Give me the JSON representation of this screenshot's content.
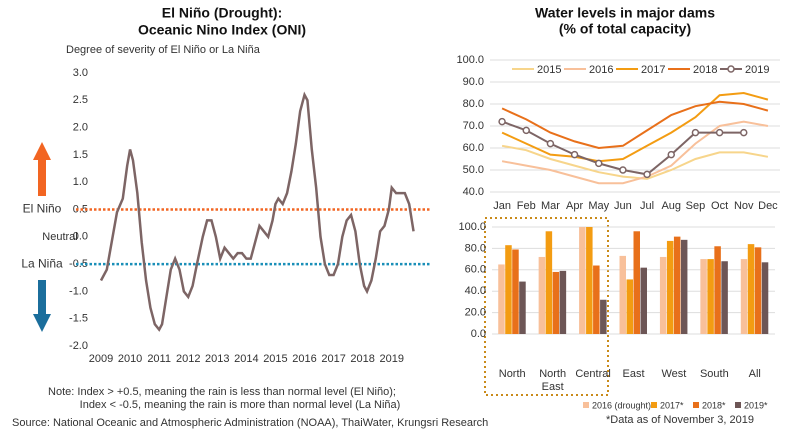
{
  "source": "Source: National Oceanic and Atmospheric Administration (NOAA), ThaiWater, Krungsri Research",
  "chart_data": [
    {
      "type": "line",
      "title": "El Niño (Drought):",
      "subtitle": "Oceanic Nino Index (ONI)",
      "ylabel": "Degree of severity of El Niño or La Niña",
      "annotation": "Neutral",
      "notes": [
        "Note: Index > +0.5, meaning the rain is less than normal level (El Niño);",
        "Index < -0.5, meaning the rain is more than normal level (La Niña)"
      ],
      "color": "#7d6565",
      "x": [
        2009.0,
        2009.2,
        2009.4,
        2009.55,
        2009.75,
        2009.9,
        2010.0,
        2010.1,
        2010.25,
        2010.4,
        2010.55,
        2010.7,
        2010.85,
        2011.0,
        2011.1,
        2011.25,
        2011.4,
        2011.55,
        2011.7,
        2011.85,
        2012.0,
        2012.15,
        2012.3,
        2012.5,
        2012.65,
        2012.8,
        2012.95,
        2013.1,
        2013.25,
        2013.4,
        2013.55,
        2013.7,
        2013.85,
        2014.0,
        2014.15,
        2014.3,
        2014.45,
        2014.6,
        2014.75,
        2014.9,
        2015.0,
        2015.1,
        2015.25,
        2015.4,
        2015.55,
        2015.7,
        2015.85,
        2016.0,
        2016.1,
        2016.25,
        2016.4,
        2016.55,
        2016.7,
        2016.85,
        2017.0,
        2017.15,
        2017.3,
        2017.45,
        2017.6,
        2017.75,
        2017.9,
        2018.05,
        2018.15,
        2018.3,
        2018.45,
        2018.6,
        2018.75,
        2018.9,
        2019.0,
        2019.15,
        2019.3,
        2019.45,
        2019.6,
        2019.75
      ],
      "values": [
        -0.8,
        -0.6,
        0.0,
        0.45,
        0.7,
        1.3,
        1.6,
        1.4,
        0.8,
        -0.1,
        -0.8,
        -1.3,
        -1.6,
        -1.7,
        -1.6,
        -1.1,
        -0.6,
        -0.4,
        -0.6,
        -1.0,
        -1.1,
        -0.9,
        -0.5,
        0.0,
        0.3,
        0.3,
        0.0,
        -0.4,
        -0.2,
        -0.3,
        -0.4,
        -0.3,
        -0.3,
        -0.4,
        -0.4,
        -0.1,
        0.2,
        0.1,
        0.0,
        0.3,
        0.6,
        0.7,
        0.6,
        0.8,
        1.2,
        1.7,
        2.3,
        2.6,
        2.5,
        1.6,
        0.9,
        0.0,
        -0.5,
        -0.7,
        -0.7,
        -0.5,
        0.0,
        0.3,
        0.4,
        0.1,
        -0.5,
        -0.9,
        -1.0,
        -0.8,
        -0.4,
        0.1,
        0.2,
        0.5,
        0.9,
        0.8,
        0.8,
        0.8,
        0.6,
        0.1
      ],
      "xlim": [
        2009,
        2019.8
      ],
      "xticks": [
        2009,
        2010,
        2011,
        2012,
        2013,
        2014,
        2015,
        2016,
        2017,
        2018,
        2019
      ],
      "ylim": [
        -2,
        3
      ],
      "yticks": [
        {
          "value": 3,
          "label": "3.0"
        },
        2.5,
        {
          "value": 2,
          "label": "2.0"
        },
        1.5,
        {
          "value": 1,
          "label": "1.0"
        },
        0.5,
        {
          "value": 0,
          "label": "0.0"
        },
        -0.5,
        {
          "value": -1,
          "label": "-1.0"
        },
        -1.5,
        {
          "value": -2,
          "label": "-2.0"
        }
      ],
      "thresholds": [
        {
          "value": 0.5,
          "label": "El Niño",
          "color": "#f26522"
        },
        {
          "value": -0.5,
          "label": "La Niña",
          "color": "#1a8fb8"
        }
      ]
    },
    {
      "type": "line",
      "title": "Water levels in major dams",
      "subtitle": "(% of total capacity)",
      "categories": [
        "Jan",
        "Feb",
        "Mar",
        "Apr",
        "May",
        "Jun",
        "Jul",
        "Aug",
        "Sep",
        "Oct",
        "Nov",
        "Dec"
      ],
      "ylim": [
        40,
        100
      ],
      "yticks": [
        {
          "value": 40,
          "label": "40.0"
        },
        {
          "value": 50,
          "label": "50.0"
        },
        {
          "value": 60,
          "label": "60.0"
        },
        {
          "value": 70,
          "label": "70.0"
        },
        {
          "value": 80,
          "label": "80.0"
        },
        {
          "value": 90,
          "label": "90.0"
        },
        {
          "value": 100,
          "label": "100.0"
        }
      ],
      "grid": true,
      "series": [
        {
          "name": "2015",
          "color": "#f7d58b",
          "values": [
            61,
            59,
            55,
            52,
            49,
            47,
            46,
            50,
            55,
            58,
            58,
            56
          ]
        },
        {
          "name": "2016",
          "color": "#f8c09a",
          "values": [
            54,
            52,
            50,
            47,
            44,
            44,
            47,
            52,
            62,
            70,
            72,
            70
          ]
        },
        {
          "name": "2017",
          "color": "#f39c12",
          "values": [
            67,
            62,
            57,
            56,
            54,
            55,
            61,
            67,
            74,
            84,
            85,
            82
          ]
        },
        {
          "name": "2018",
          "color": "#e8701a",
          "values": [
            78,
            73,
            67,
            63,
            60,
            61,
            68,
            75,
            79,
            81,
            80,
            77
          ]
        },
        {
          "name": "2019",
          "color": "#7d6565",
          "marker": true,
          "values": [
            72,
            68,
            62,
            57,
            53,
            50,
            48,
            57,
            67,
            67,
            67,
            null
          ]
        }
      ]
    },
    {
      "type": "bar",
      "note": "*Data as of November 3, 2019",
      "categories": [
        "North",
        "North East",
        "Central",
        "East",
        "West",
        "South",
        "All"
      ],
      "ylim": [
        0,
        100
      ],
      "yticks": [
        {
          "value": 0,
          "label": "0.0"
        },
        {
          "value": 20,
          "label": "20.0"
        },
        {
          "value": 40,
          "label": "40.0"
        },
        {
          "value": 60,
          "label": "60.0"
        },
        {
          "value": 80,
          "label": "80.0"
        },
        {
          "value": 100,
          "label": "100.0"
        }
      ],
      "grid": true,
      "series": [
        {
          "name": "2016 (drought)*",
          "color": "#f8c09a",
          "values": [
            65,
            72,
            100,
            73,
            72,
            70,
            70
          ]
        },
        {
          "name": "2017*",
          "color": "#f39c12",
          "values": [
            83,
            96,
            100,
            51,
            87,
            70,
            84
          ]
        },
        {
          "name": "2018*",
          "color": "#e8701a",
          "values": [
            79,
            58,
            64,
            96,
            91,
            82,
            81
          ]
        },
        {
          "name": "2019*",
          "color": "#6d5656",
          "values": [
            49,
            59,
            32,
            62,
            88,
            68,
            67
          ]
        }
      ]
    }
  ]
}
